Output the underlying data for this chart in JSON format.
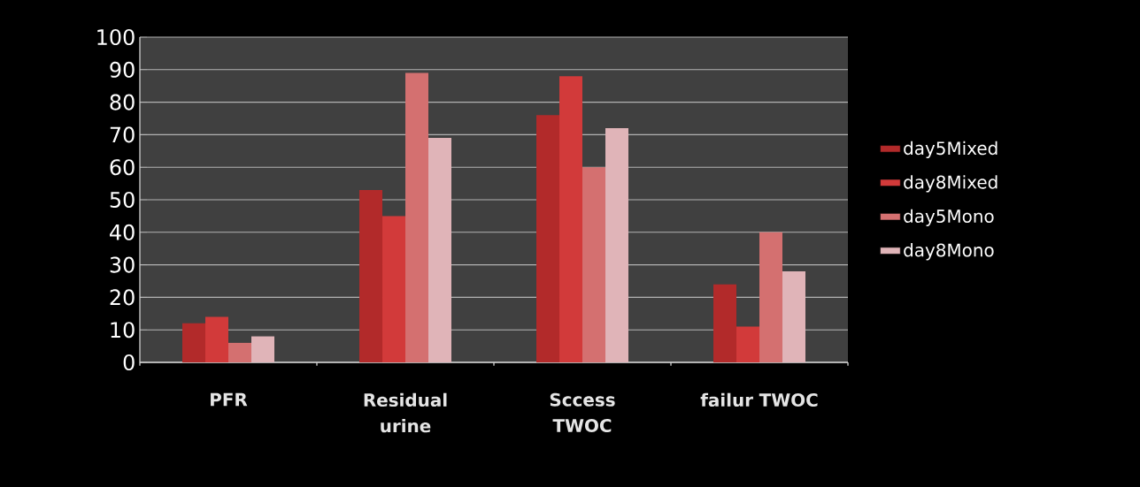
{
  "chart_data": {
    "type": "bar",
    "categories": [
      "PFR",
      "Residual urine",
      "Sccess TWOC",
      "failur TWOC"
    ],
    "series": [
      {
        "name": "day5Mixed",
        "color": "#b22a2a",
        "values": [
          12,
          53,
          76,
          24
        ]
      },
      {
        "name": "day8Mixed",
        "color": "#d23a3a",
        "values": [
          14,
          45,
          88,
          11
        ]
      },
      {
        "name": "day5Mono",
        "color": "#d47070",
        "values": [
          6,
          89,
          60,
          40
        ]
      },
      {
        "name": "day8Mono",
        "color": "#e0b4b8",
        "values": [
          8,
          69,
          72,
          28
        ]
      }
    ],
    "ylim": [
      0,
      100
    ],
    "yticks": [
      0,
      10,
      20,
      30,
      40,
      50,
      60,
      70,
      80,
      90,
      100
    ],
    "grid": "y",
    "legend": "right"
  }
}
